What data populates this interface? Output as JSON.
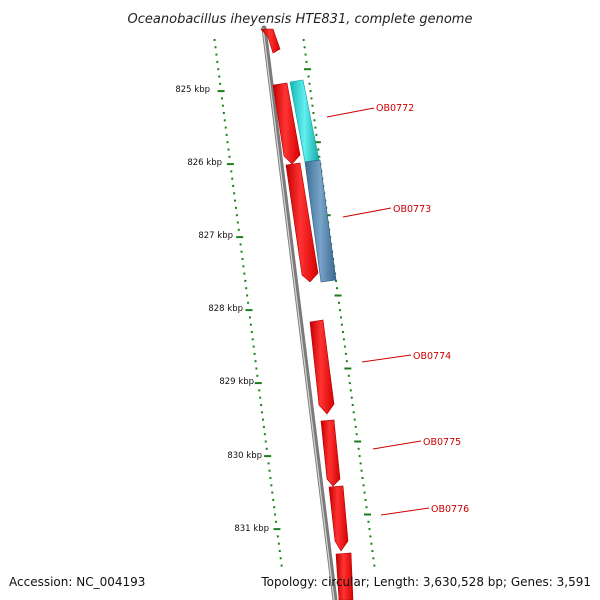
{
  "title": "Oceanobacillus iheyensis HTE831, complete genome",
  "footer": {
    "accession": "Accession: NC_004193",
    "summary": "Topology: circular; Length: 3,630,528 bp; Genes: 3,591"
  },
  "colors": {
    "backbone": "#7a7a7a",
    "tick": "#1a7f1a",
    "gene_forward": "#ee1111",
    "gene_cyan": "#22cccc",
    "gene_steel": "#4f80aa",
    "gene_label": "#cc0000",
    "title_text": "#222222"
  },
  "map": {
    "ruler_labels": [
      "825 kbp",
      "826 kbp",
      "827 kbp",
      "828 kbp",
      "829 kbp",
      "830 kbp",
      "831 kbp"
    ],
    "gene_labels": [
      "OB0772",
      "OB0773",
      "OB0774",
      "OB0775",
      "OB0776"
    ]
  }
}
